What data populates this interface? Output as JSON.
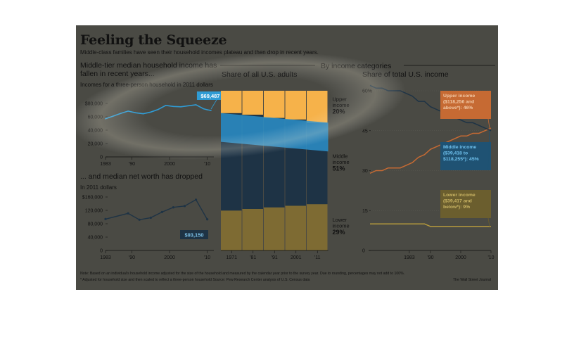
{
  "title": "Feeling the Squeeze",
  "subtitle": "Middle-class families have seen their household incomes plateau and then drop in recent years.",
  "section_header": "By income categories",
  "income_panel": {
    "heading": "Middle-tier median household income has fallen in recent years...",
    "sub": "Incomes for a three-person household in 2011 dollars",
    "callout": "$69,487"
  },
  "networth_panel": {
    "heading": "... and median net worth has dropped",
    "sub": "In 2011 dollars",
    "callout": "$93,150"
  },
  "share_adults_panel": {
    "heading": "Share of all U.S. adults"
  },
  "share_income_panel": {
    "heading": "Share of total U.S. income"
  },
  "notes": {
    "line1": "Note: Based on an individual's household income adjusted for the size of the household and measured by the calendar year prior to the survey year. Due to rounding, percentages may not add to 100%.",
    "line2": "* Adjusted for household size and then scaled to reflect a three-person household     Source: Pew Research Center analysis of U.S. Census data",
    "credit": "The Wall Street Journal"
  },
  "colors": {
    "upper": "#f6b24a",
    "upper_line": "#c66a33",
    "middle": "#2b8fc9",
    "middle_dark": "#1e3345",
    "lower": "#7e6b33",
    "lower_line": "#b79b3c",
    "line": "#2f9bd4"
  },
  "chart_data": [
    {
      "type": "line",
      "title": "Middle-tier median household income has fallen in recent years...",
      "ylabel": "Incomes for a three-person household in 2011 dollars",
      "x": [
        1983,
        1985,
        1987,
        1989,
        1991,
        1993,
        1995,
        1997,
        1999,
        2001,
        2003,
        2005,
        2007,
        2009,
        2010,
        2011
      ],
      "values": [
        57000,
        61000,
        65000,
        68500,
        66000,
        64500,
        67000,
        71000,
        77000,
        75500,
        75000,
        76500,
        78000,
        72000,
        70500,
        69487
      ],
      "xticks": [
        "1983",
        "'90",
        "2000",
        "'10"
      ],
      "yticks": [
        "0",
        "20,000",
        "40,000",
        "60,000",
        "$80,000"
      ],
      "ylim": [
        0,
        80000
      ],
      "annotation": "$69,487"
    },
    {
      "type": "line",
      "title": "... and median net worth has dropped",
      "ylabel": "In 2011 dollars",
      "x": [
        1983,
        1989,
        1992,
        1995,
        1998,
        2001,
        2004,
        2007,
        2010
      ],
      "values": [
        94000,
        111000,
        92000,
        98000,
        115000,
        129000,
        133000,
        152000,
        93150
      ],
      "xticks": [
        "1983",
        "'90",
        "2000",
        "'10"
      ],
      "yticks": [
        "0",
        "40,000",
        "80,000",
        "120,000",
        "$160,000"
      ],
      "ylim": [
        0,
        160000
      ],
      "annotation": "$93,150"
    },
    {
      "type": "bar",
      "title": "Share of all U.S. adults",
      "categories": [
        "1971",
        "'81",
        "'91",
        "2001",
        "'11"
      ],
      "series": [
        {
          "name": "Lower income",
          "values": [
            25,
            26,
            27,
            28,
            29
          ]
        },
        {
          "name": "Middle income",
          "values": [
            61,
            59,
            56,
            54,
            51
          ]
        },
        {
          "name": "Upper income",
          "values": [
            14,
            15,
            17,
            18,
            20
          ]
        }
      ],
      "ylim": [
        0,
        100
      ],
      "labels": [
        {
          "series": "Upper income",
          "name": "Upper income",
          "value": "20%"
        },
        {
          "series": "Middle income",
          "name": "Middle income",
          "value": "51%"
        },
        {
          "series": "Lower income",
          "name": "Lower income",
          "value": "29%"
        }
      ]
    },
    {
      "type": "line",
      "title": "Share of total U.S. income",
      "x": [
        1970,
        1972,
        1974,
        1976,
        1978,
        1980,
        1982,
        1984,
        1986,
        1988,
        1990,
        1992,
        1994,
        1996,
        1998,
        2000,
        2002,
        2004,
        2006,
        2008,
        2010
      ],
      "series": [
        {
          "name": "Upper income ($118,256 and above*): 46%",
          "values": [
            29,
            30,
            30,
            31,
            31,
            31,
            32,
            33,
            35,
            36,
            38,
            39,
            40,
            41,
            42,
            43,
            43,
            44,
            44,
            45,
            46
          ]
        },
        {
          "name": "Middle income ($39,418 to $118,255*): 45%",
          "values": [
            62,
            61,
            61,
            60,
            60,
            60,
            59,
            58,
            56,
            56,
            54,
            53,
            52,
            51,
            50,
            49,
            48,
            48,
            47,
            46,
            45
          ]
        },
        {
          "name": "Lower income ($39,417 and below*): 9%",
          "values": [
            10,
            10,
            10,
            10,
            10,
            10,
            10,
            10,
            10,
            10,
            9,
            9,
            9,
            9,
            9,
            9,
            9,
            9,
            9,
            9,
            9
          ]
        }
      ],
      "xticks": [
        "1983",
        "'90",
        "2000",
        "'10"
      ],
      "yticks": [
        "0",
        "15",
        "30",
        "45",
        "60%"
      ],
      "ylim": [
        0,
        60
      ]
    }
  ]
}
